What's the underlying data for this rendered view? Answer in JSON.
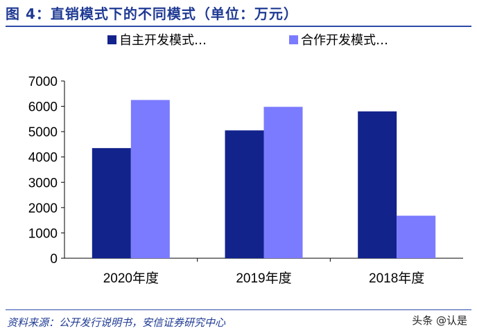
{
  "title": "图 4：直销模式下的不同模式（单位：万元）",
  "source": "资料来源：公开发行说明书，安信证券研究中心",
  "watermark": "头条 @认是",
  "colors": {
    "series1": "#13238c",
    "series2": "#7b7bff",
    "title": "#1f3a93",
    "axis": "#000000"
  },
  "chart_data": {
    "type": "bar",
    "categories": [
      "2020年度",
      "2019年度",
      "2018年度"
    ],
    "series": [
      {
        "name": "自主开发模式…",
        "values": [
          4350,
          5050,
          5800
        ]
      },
      {
        "name": "合作开发模式…",
        "values": [
          6250,
          5980,
          1680
        ]
      }
    ],
    "ylim": [
      0,
      7000
    ],
    "yticks": [
      "0",
      "1000",
      "2000",
      "3000",
      "4000",
      "5000",
      "6000",
      "7000"
    ],
    "grid": false,
    "legend": "top"
  }
}
